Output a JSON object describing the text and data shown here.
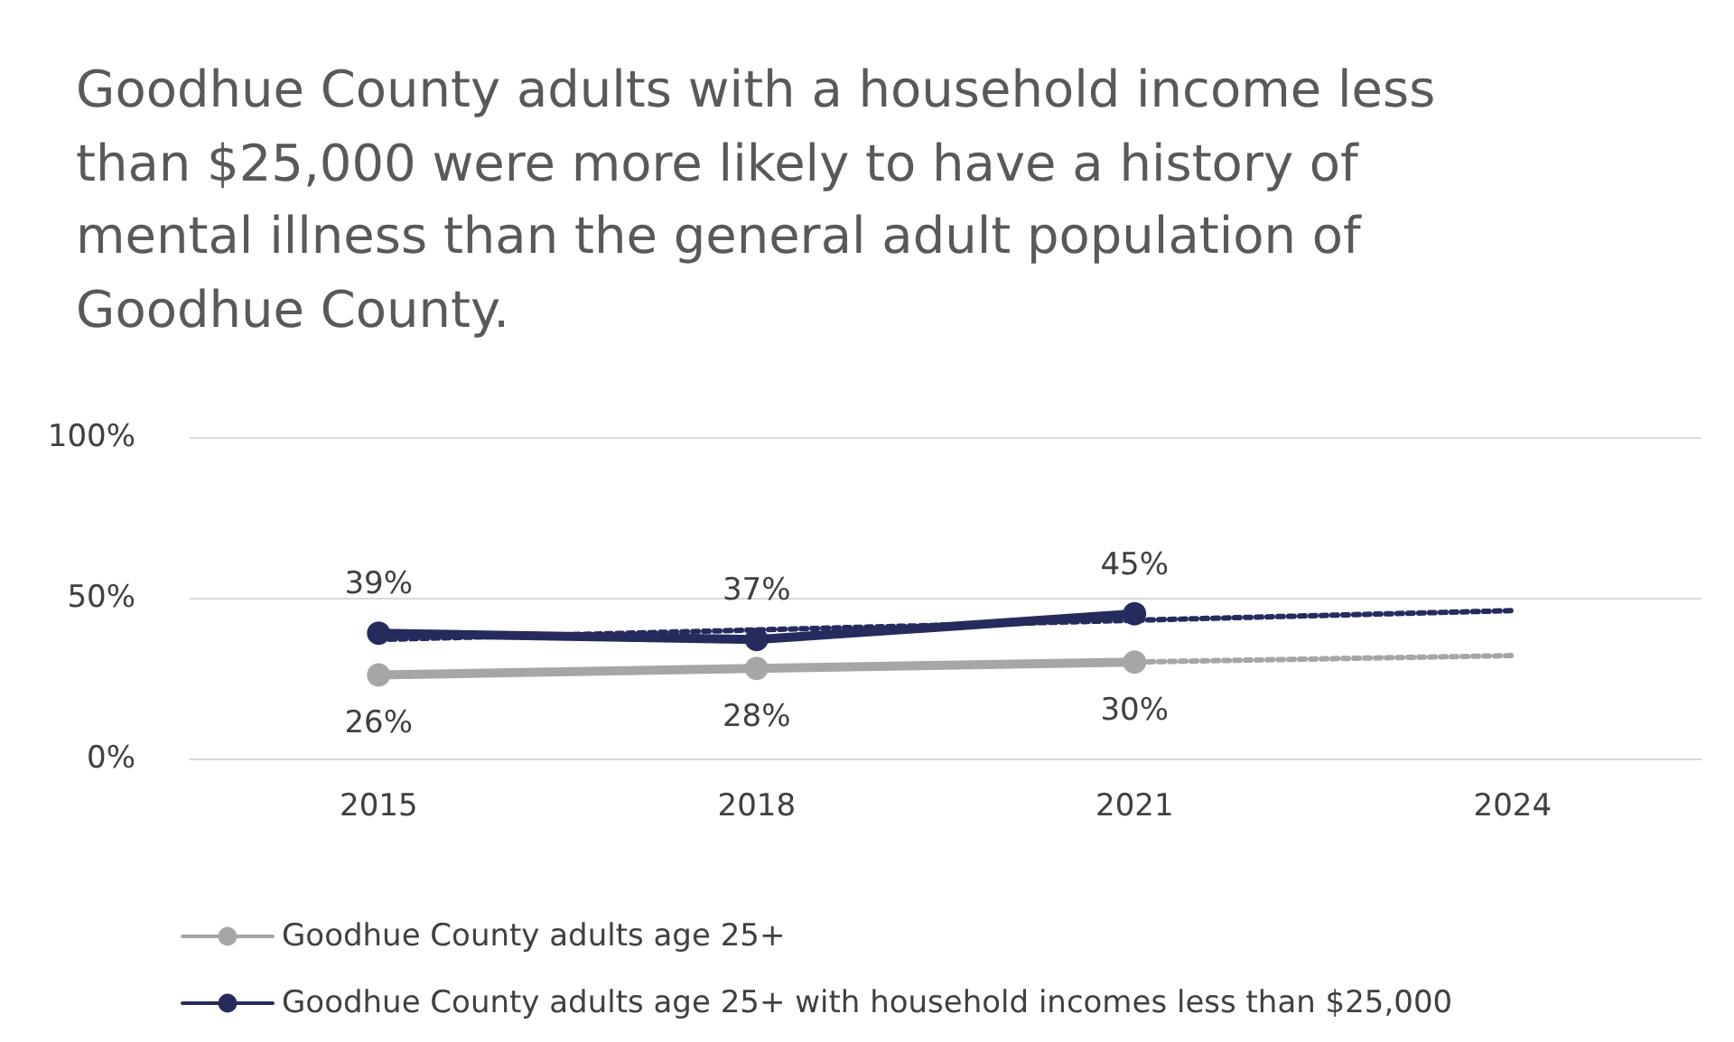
{
  "chart_data": {
    "type": "line",
    "title": "Goodhue County adults with a household income less than $25,000 were more likely to have a history of mental illness than the general adult population of Goodhue County.",
    "categories": [
      "2015",
      "2018",
      "2021",
      "2024"
    ],
    "series": [
      {
        "name": "Goodhue County adults age 25+",
        "color": "#a6a6a6",
        "values": [
          26,
          28,
          30,
          null
        ],
        "value_labels": [
          "26%",
          "28%",
          "30%",
          null
        ]
      },
      {
        "name": "Goodhue County adults age 25+ with household incomes less than $25,000",
        "color": "#262b5e",
        "values": [
          39,
          37,
          45,
          null
        ],
        "value_labels": [
          "39%",
          "37%",
          "45%",
          null
        ]
      },
      {
        "type": "line",
        "color": "#a6a6a6",
        "values": [
          26,
          null,
          null,
          32
        ],
        "line_style": "dotted",
        "marker": "none"
      },
      {
        "type": "line",
        "color": "#262b5e",
        "values": [
          37,
          null,
          null,
          46
        ],
        "line_style": "dotted",
        "marker": "none"
      }
    ],
    "ylim": [
      0,
      100
    ],
    "yticks": [
      {
        "value": 0,
        "label": "0%"
      },
      {
        "value": 50,
        "label": "50%"
      },
      {
        "value": 100,
        "label": "100%"
      }
    ],
    "grid": "y",
    "legend": "bottom left",
    "marker": "circle",
    "line_style": "solid"
  }
}
